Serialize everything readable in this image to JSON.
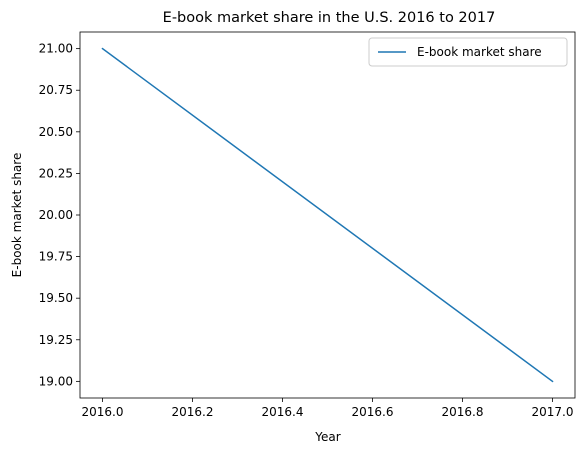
{
  "chart_data": {
    "type": "line",
    "title": "E-book market share in the U.S. 2016 to 2017",
    "xlabel": "Year",
    "ylabel": "E-book market share",
    "xlim": [
      2015.95,
      2017.05
    ],
    "ylim": [
      18.9,
      21.1
    ],
    "xticks": [
      2016.0,
      2016.2,
      2016.4,
      2016.6,
      2016.8,
      2017.0
    ],
    "xtick_labels": [
      "2016.0",
      "2016.2",
      "2016.4",
      "2016.6",
      "2016.8",
      "2017.0"
    ],
    "yticks": [
      19.0,
      19.25,
      19.5,
      19.75,
      20.0,
      20.25,
      20.5,
      20.75,
      21.0
    ],
    "ytick_labels": [
      "19.00",
      "19.25",
      "19.50",
      "19.75",
      "20.00",
      "20.25",
      "20.50",
      "20.75",
      "21.00"
    ],
    "grid": false,
    "legend_position": "top-right",
    "series": [
      {
        "name": "E-book market share",
        "color": "#1f77b4",
        "x": [
          2016,
          2017
        ],
        "y": [
          21,
          19
        ]
      }
    ]
  }
}
